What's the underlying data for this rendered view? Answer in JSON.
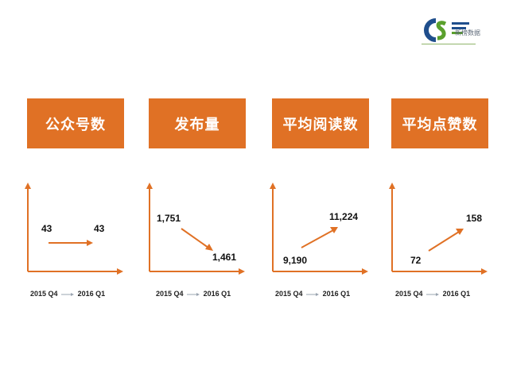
{
  "logo": {
    "brand": "CS",
    "subtitle": "新榜数据",
    "colors": {
      "c": "#1f4e8c",
      "s": "#5aa02c",
      "bars": "#1f4e8c"
    }
  },
  "accent_color": "#e07125",
  "axis_color": "#e07125",
  "panels": [
    {
      "title": "公众号数",
      "start_value": "43",
      "end_value": "43",
      "trend": "flat",
      "x_from": "2015 Q4",
      "x_to": "2016  Q1"
    },
    {
      "title": "发布量",
      "start_value": "1,751",
      "end_value": "1,461",
      "trend": "down",
      "x_from": "2015 Q4",
      "x_to": "2016  Q1"
    },
    {
      "title": "平均阅读数",
      "start_value": "9,190",
      "end_value": "11,224",
      "trend": "up",
      "x_from": "2015 Q4",
      "x_to": "2016  Q1"
    },
    {
      "title": "平均点赞数",
      "start_value": "72",
      "end_value": "158",
      "trend": "up",
      "x_from": "2015 Q4",
      "x_to": "2016  Q1"
    }
  ]
}
